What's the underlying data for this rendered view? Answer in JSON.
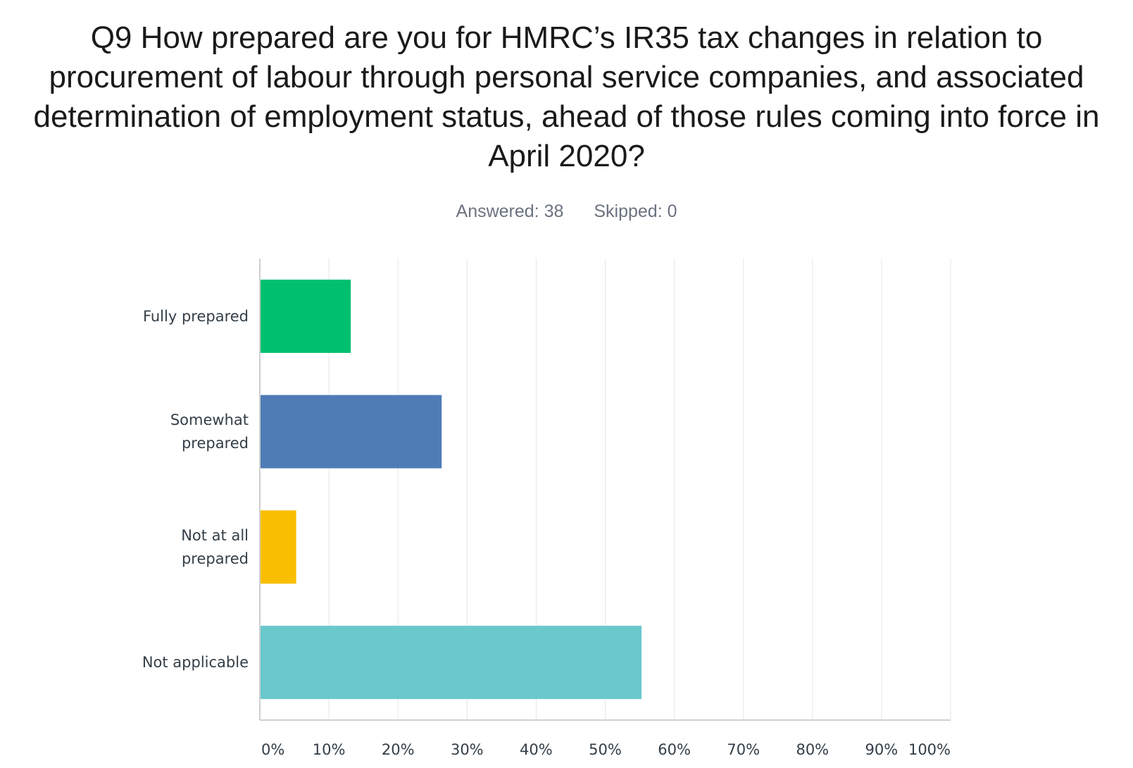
{
  "title": "Q9 How prepared are you for HMRC’s IR35 tax changes in relation to procurement of labour through personal service companies, and associated determination of employment status, ahead of those rules coming into force in April 2020?",
  "stats": {
    "answered": "Answered: 38",
    "skipped": "Skipped: 0"
  },
  "chart_data": {
    "type": "bar",
    "orientation": "horizontal",
    "categories": [
      "Fully prepared",
      "Somewhat prepared",
      "Not at all prepared",
      "Not applicable"
    ],
    "category_lines": [
      [
        "Fully prepared"
      ],
      [
        "Somewhat",
        "prepared"
      ],
      [
        "Not at all",
        "prepared"
      ],
      [
        "Not applicable"
      ]
    ],
    "values": [
      13.16,
      26.32,
      5.26,
      55.26
    ],
    "colors": [
      "#00bf6f",
      "#507cb6",
      "#f9be00",
      "#6bc8cd"
    ],
    "xlim": [
      0,
      100
    ],
    "xticks": [
      "0%",
      "10%",
      "20%",
      "30%",
      "40%",
      "50%",
      "60%",
      "70%",
      "80%",
      "90%",
      "100%"
    ],
    "grid": true,
    "xlabel": "",
    "ylabel": ""
  }
}
